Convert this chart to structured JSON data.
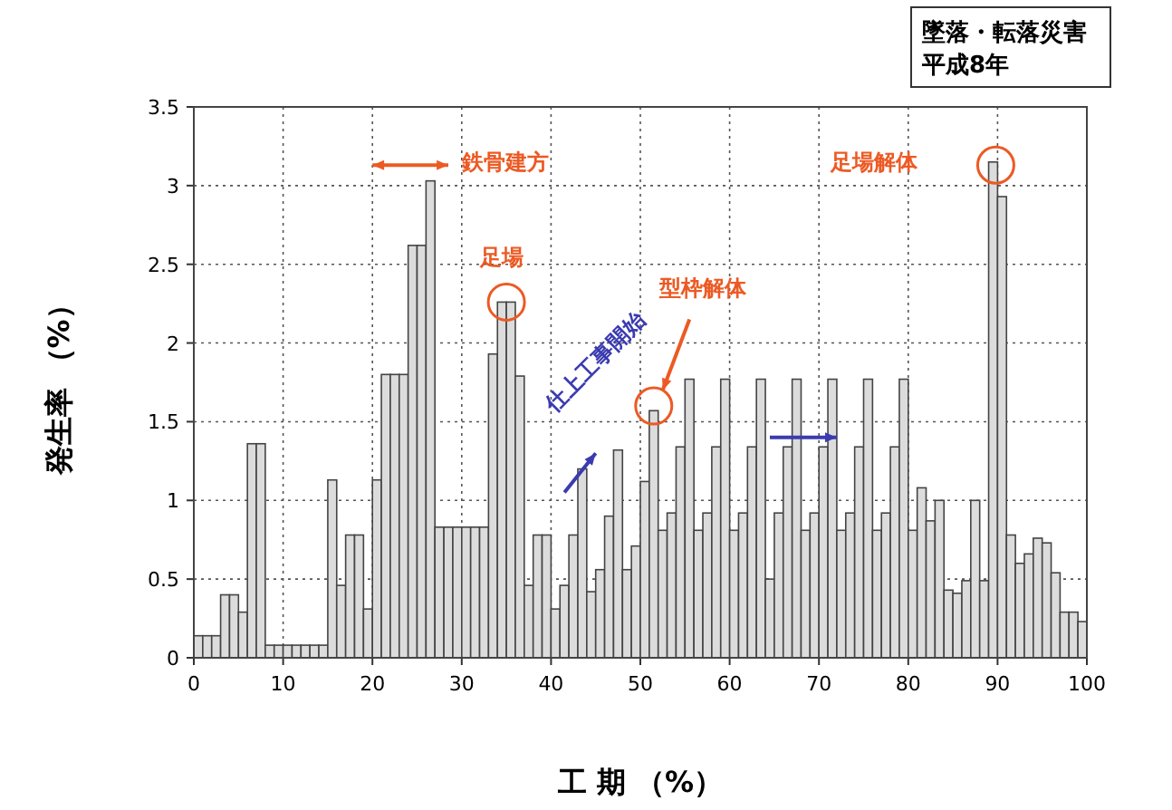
{
  "chart_data": {
    "type": "histogram",
    "xlabel": "工 期 （%）",
    "ylabel": "発生率 （%）",
    "bins": [
      0,
      1,
      2,
      3,
      4,
      5,
      6,
      7,
      8,
      9,
      10,
      11,
      12,
      13,
      14,
      15,
      16,
      17,
      18,
      19,
      20,
      21,
      22,
      23,
      24,
      25,
      26,
      27,
      28,
      29,
      30,
      31,
      32,
      33,
      34,
      35,
      36,
      37,
      38,
      39,
      40,
      41,
      42,
      43,
      44,
      45,
      46,
      47,
      48,
      49,
      50,
      51,
      52,
      53,
      54,
      55,
      56,
      57,
      58,
      59,
      60,
      61,
      62,
      63,
      64,
      65,
      66,
      67,
      68,
      69,
      70,
      71,
      72,
      73,
      74,
      75,
      76,
      77,
      78,
      79,
      80,
      81,
      82,
      83,
      84,
      85,
      86,
      87,
      88,
      89,
      90,
      91,
      92,
      93,
      94,
      95,
      96,
      97,
      98,
      99,
      100
    ],
    "values": [
      0.14,
      0.14,
      0.14,
      0.4,
      0.4,
      0.29,
      1.36,
      1.36,
      0.08,
      0.08,
      0.08,
      0.08,
      0.08,
      0.08,
      0.08,
      1.13,
      0.46,
      0.78,
      0.78,
      0.31,
      1.13,
      1.8,
      1.8,
      1.8,
      2.62,
      2.62,
      3.03,
      0.83,
      0.83,
      0.83,
      0.83,
      0.83,
      0.83,
      1.93,
      2.26,
      2.26,
      1.79,
      0.46,
      0.78,
      0.78,
      0.31,
      0.46,
      0.78,
      1.2,
      0.42,
      0.56,
      0.9,
      1.32,
      0.56,
      0.71,
      1.12,
      1.57,
      0.81,
      0.92,
      1.34,
      1.77,
      0.81,
      0.92,
      1.34,
      1.77,
      0.81,
      0.92,
      1.34,
      1.77,
      0.5,
      0.92,
      1.34,
      1.77,
      0.81,
      0.92,
      1.34,
      1.77,
      0.81,
      0.92,
      1.34,
      1.77,
      0.81,
      0.92,
      1.34,
      1.77,
      0.81,
      1.08,
      0.87,
      1.0,
      0.43,
      0.41,
      0.49,
      1.0,
      0.49,
      3.15,
      2.93,
      0.78,
      0.6,
      0.66,
      0.76,
      0.73,
      0.54,
      0.29,
      0.29,
      0.23
    ],
    "color": "#dcdcdc",
    "xlim": [
      0,
      100
    ],
    "xticks": [
      0,
      10,
      20,
      30,
      40,
      50,
      60,
      70,
      80,
      90,
      100
    ],
    "ylim": [
      0,
      3.5
    ],
    "yticks": [
      0,
      0.5,
      1,
      1.5,
      2,
      2.5,
      3,
      3.5
    ],
    "grid": true,
    "annotations": [
      "墜落・転落災害",
      "平成8年",
      "鉄骨建方",
      "足場",
      "仕上工事開始",
      "型枠解体",
      "足場解体"
    ]
  }
}
